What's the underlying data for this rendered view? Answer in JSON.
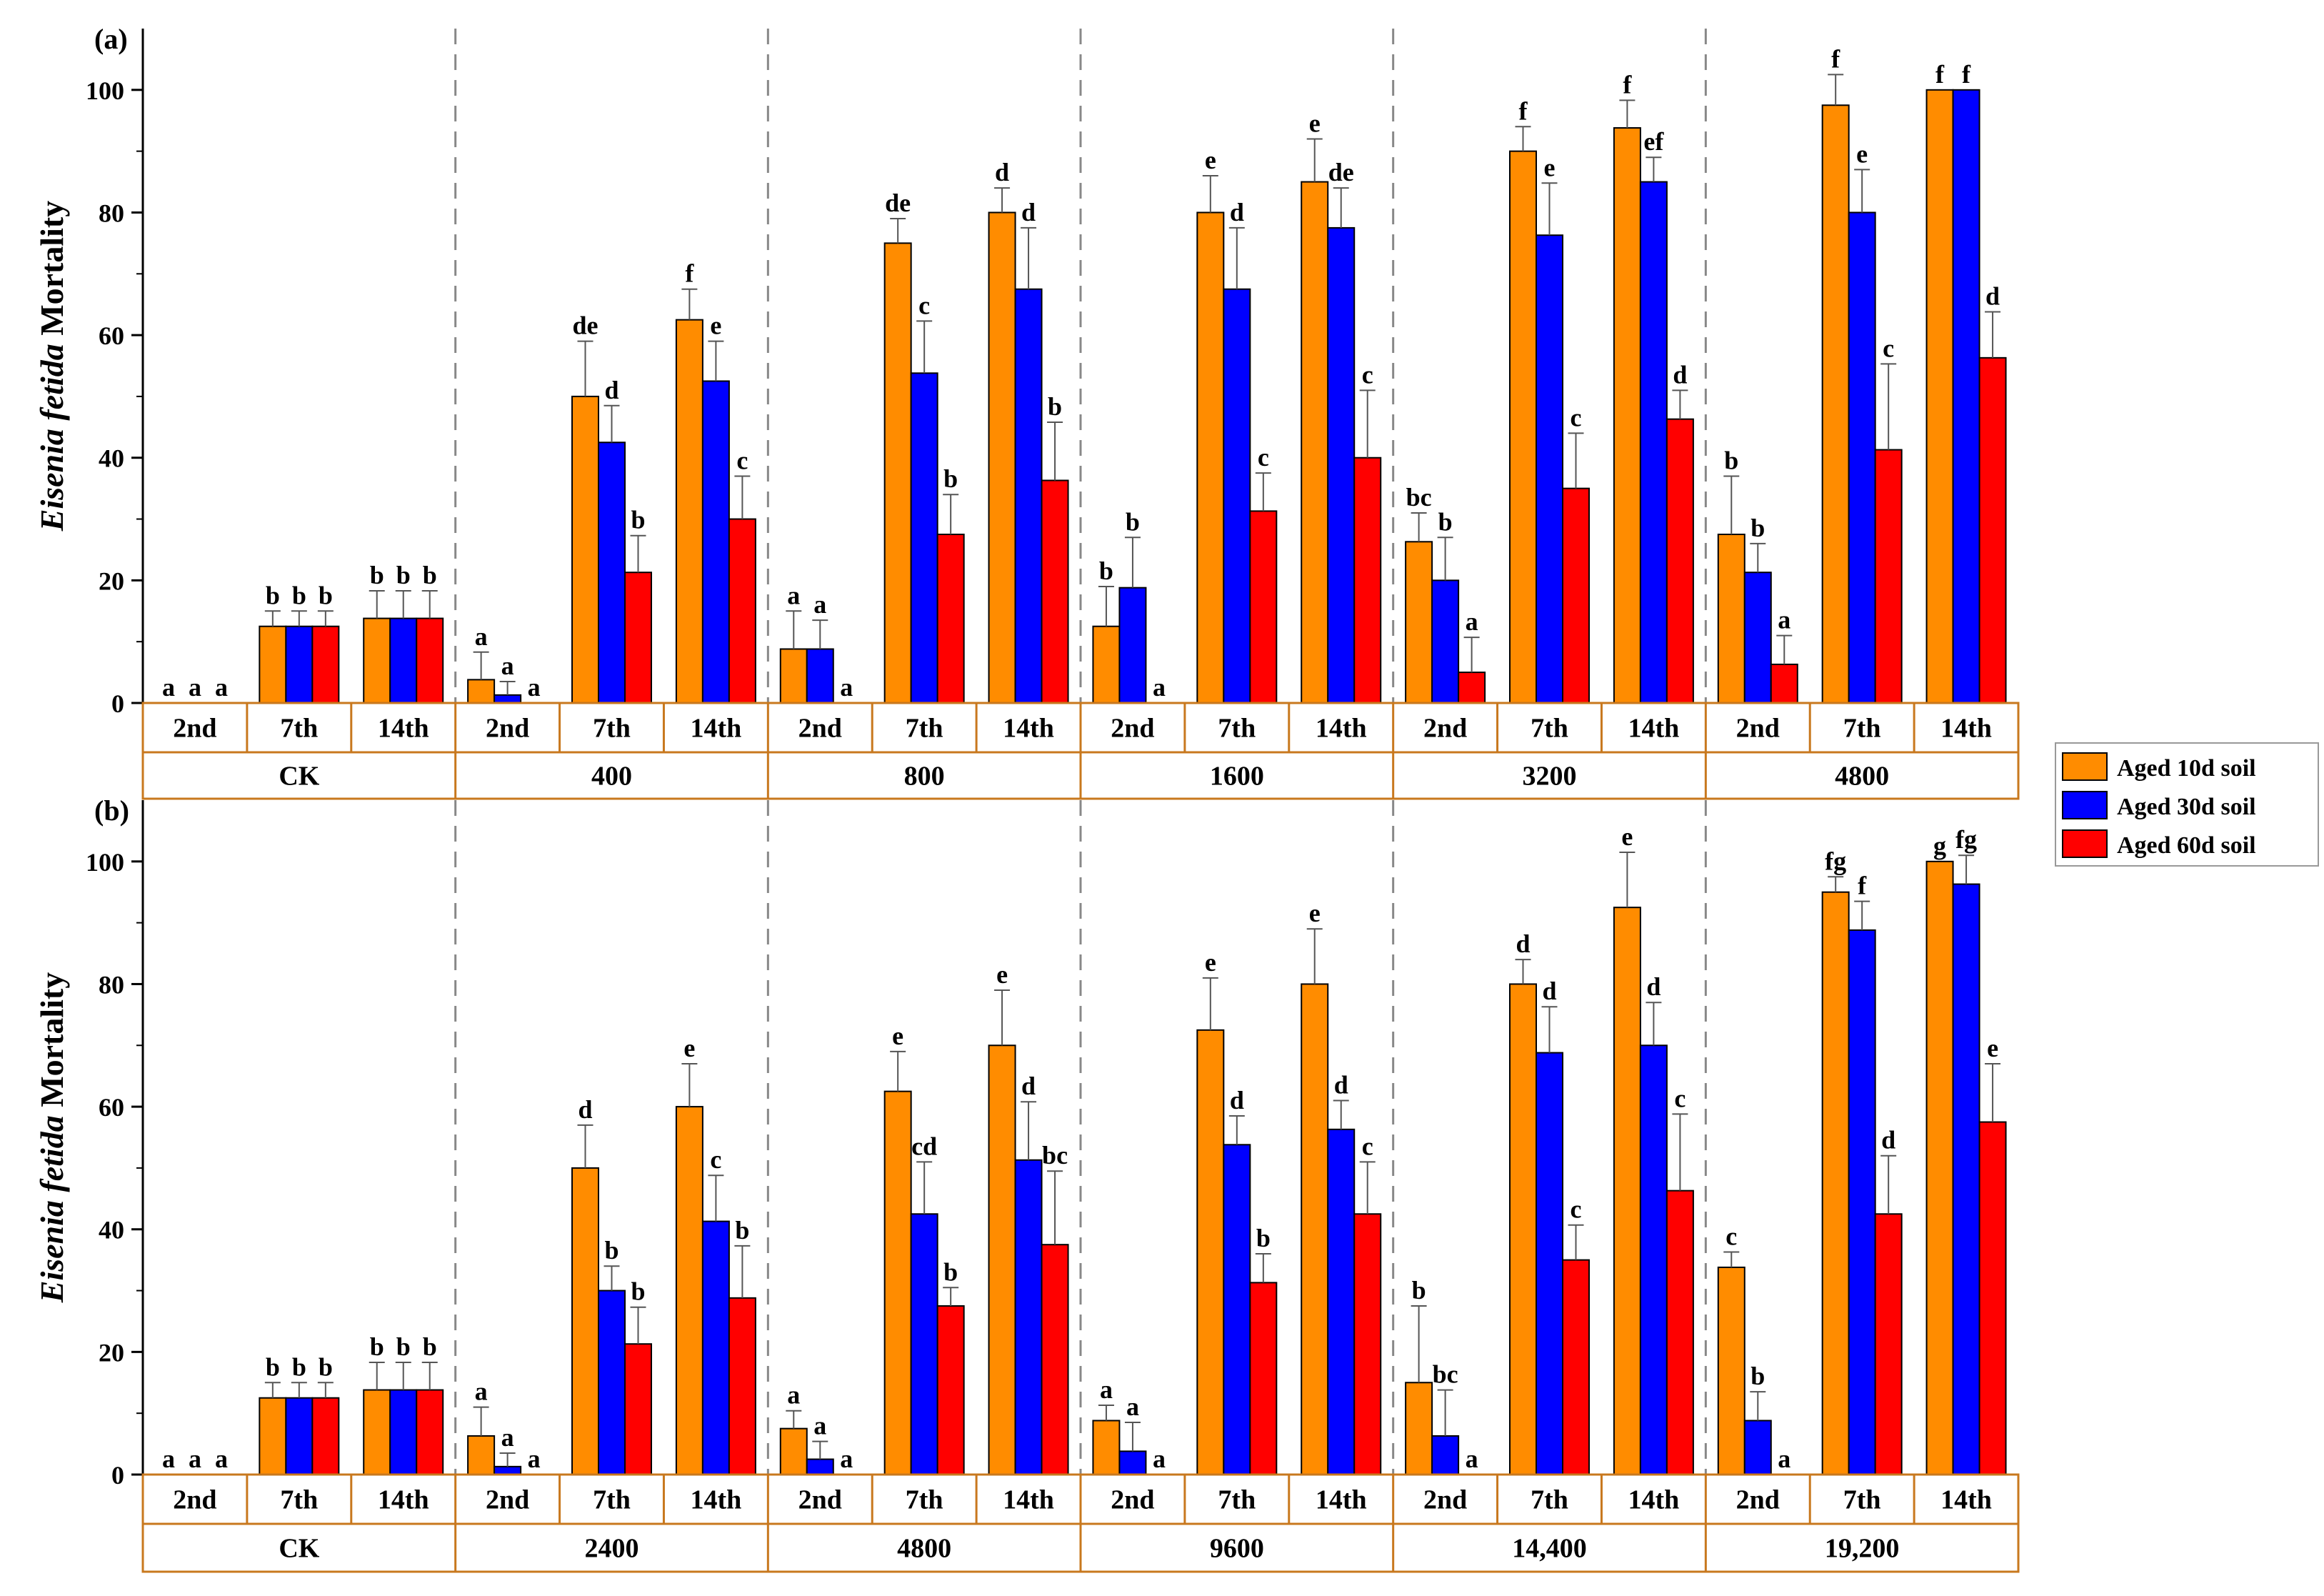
{
  "legend": {
    "position": "right",
    "entries": [
      {
        "name": "Aged 10d soil",
        "color": "#FF8C00"
      },
      {
        "name": "Aged 30d soil",
        "color": "#0000FF"
      },
      {
        "name": "Aged 60d soil",
        "color": "#FF0000"
      }
    ]
  },
  "chart_data": [
    {
      "type": "bar",
      "panel_label": "(a)",
      "ylabel_italic": "Eisenia fetida",
      "ylabel_rest": " Mortality",
      "ylim": [
        0,
        110
      ],
      "yticks": [
        0,
        20,
        40,
        60,
        80,
        100
      ],
      "days": [
        "2nd",
        "7th",
        "14th"
      ],
      "groups": [
        {
          "label": "CK",
          "bars": [
            {
              "day": "2nd",
              "values": [
                0,
                0,
                0
              ],
              "errors": [
                0,
                0,
                0
              ],
              "letters": [
                "a",
                "a",
                "a"
              ]
            },
            {
              "day": "7th",
              "values": [
                12.5,
                12.5,
                12.5
              ],
              "errors": [
                2.5,
                2.5,
                2.5
              ],
              "letters": [
                "b",
                "b",
                "b"
              ]
            },
            {
              "day": "14th",
              "values": [
                13.8,
                13.8,
                13.8
              ],
              "errors": [
                4.5,
                4.5,
                4.5
              ],
              "letters": [
                "b",
                "b",
                "b"
              ]
            }
          ]
        },
        {
          "label": "400",
          "bars": [
            {
              "day": "2nd",
              "values": [
                3.8,
                1.3,
                0
              ],
              "errors": [
                4.5,
                2.2,
                0
              ],
              "letters": [
                "a",
                "a",
                "a"
              ]
            },
            {
              "day": "7th",
              "values": [
                50,
                42.5,
                21.3
              ],
              "errors": [
                9,
                6,
                6
              ],
              "letters": [
                "de",
                "d",
                "b"
              ]
            },
            {
              "day": "14th",
              "values": [
                62.5,
                52.5,
                30
              ],
              "errors": [
                5,
                6.5,
                7
              ],
              "letters": [
                "f",
                "e",
                "c"
              ]
            }
          ]
        },
        {
          "label": "800",
          "bars": [
            {
              "day": "2nd",
              "values": [
                8.8,
                8.8,
                0
              ],
              "errors": [
                6.2,
                4.7,
                0
              ],
              "letters": [
                "a",
                "a",
                "a"
              ]
            },
            {
              "day": "7th",
              "values": [
                75,
                53.8,
                27.5
              ],
              "errors": [
                4,
                8.5,
                6.5
              ],
              "letters": [
                "de",
                "c",
                "b"
              ]
            },
            {
              "day": "14th",
              "values": [
                80,
                67.5,
                36.3
              ],
              "errors": [
                4,
                10,
                9.5
              ],
              "letters": [
                "d",
                "d",
                "b"
              ]
            }
          ]
        },
        {
          "label": "1600",
          "bars": [
            {
              "day": "2nd",
              "values": [
                12.5,
                18.8,
                0
              ],
              "errors": [
                6.5,
                8.2,
                0
              ],
              "letters": [
                "b",
                "b",
                "a"
              ]
            },
            {
              "day": "7th",
              "values": [
                80,
                67.5,
                31.3
              ],
              "errors": [
                6,
                10,
                6.2
              ],
              "letters": [
                "e",
                "d",
                "c"
              ]
            },
            {
              "day": "14th",
              "values": [
                85,
                77.5,
                40
              ],
              "errors": [
                7,
                6.5,
                11
              ],
              "letters": [
                "e",
                "de",
                "c"
              ]
            }
          ]
        },
        {
          "label": "3200",
          "bars": [
            {
              "day": "2nd",
              "values": [
                26.3,
                20,
                5
              ],
              "errors": [
                4.7,
                7,
                5.7
              ],
              "letters": [
                "bc",
                "b",
                "a"
              ]
            },
            {
              "day": "7th",
              "values": [
                90,
                76.3,
                35
              ],
              "errors": [
                4,
                8.5,
                9
              ],
              "letters": [
                "f",
                "e",
                "c"
              ]
            },
            {
              "day": "14th",
              "values": [
                93.8,
                85,
                46.3
              ],
              "errors": [
                4.5,
                4,
                4.7
              ],
              "letters": [
                "f",
                "ef",
                "d"
              ]
            }
          ]
        },
        {
          "label": "4800",
          "bars": [
            {
              "day": "2nd",
              "values": [
                27.5,
                21.3,
                6.3
              ],
              "errors": [
                9.5,
                4.7,
                4.7
              ],
              "letters": [
                "b",
                "b",
                "a"
              ]
            },
            {
              "day": "7th",
              "values": [
                97.5,
                80,
                41.3
              ],
              "errors": [
                5,
                7,
                14
              ],
              "letters": [
                "f",
                "e",
                "c"
              ]
            },
            {
              "day": "14th",
              "values": [
                100,
                100,
                56.3
              ],
              "errors": [
                0,
                0,
                7.5
              ],
              "letters": [
                "f",
                "f",
                "d"
              ]
            }
          ]
        }
      ]
    },
    {
      "type": "bar",
      "panel_label": "(b)",
      "ylabel_italic": "Eisenia fetida",
      "ylabel_rest": " Mortality",
      "ylim": [
        0,
        110
      ],
      "yticks": [
        0,
        20,
        40,
        60,
        80,
        100
      ],
      "days": [
        "2nd",
        "7th",
        "14th"
      ],
      "groups": [
        {
          "label": "CK",
          "bars": [
            {
              "day": "2nd",
              "values": [
                0,
                0,
                0
              ],
              "errors": [
                0,
                0,
                0
              ],
              "letters": [
                "a",
                "a",
                "a"
              ]
            },
            {
              "day": "7th",
              "values": [
                12.5,
                12.5,
                12.5
              ],
              "errors": [
                2.5,
                2.5,
                2.5
              ],
              "letters": [
                "b",
                "b",
                "b"
              ]
            },
            {
              "day": "14th",
              "values": [
                13.8,
                13.8,
                13.8
              ],
              "errors": [
                4.5,
                4.5,
                4.5
              ],
              "letters": [
                "b",
                "b",
                "b"
              ]
            }
          ]
        },
        {
          "label": "2400",
          "bars": [
            {
              "day": "2nd",
              "values": [
                6.3,
                1.3,
                0
              ],
              "errors": [
                4.7,
                2.2,
                0
              ],
              "letters": [
                "a",
                "a",
                "a"
              ]
            },
            {
              "day": "7th",
              "values": [
                50,
                30,
                21.3
              ],
              "errors": [
                7,
                4,
                6
              ],
              "letters": [
                "d",
                "b",
                "b"
              ]
            },
            {
              "day": "14th",
              "values": [
                60,
                41.3,
                28.8
              ],
              "errors": [
                7,
                7.5,
                8.5
              ],
              "letters": [
                "e",
                "c",
                "b"
              ]
            }
          ]
        },
        {
          "label": "4800",
          "bars": [
            {
              "day": "2nd",
              "values": [
                7.5,
                2.5,
                0
              ],
              "errors": [
                2.9,
                2.9,
                0
              ],
              "letters": [
                "a",
                "a",
                "a"
              ]
            },
            {
              "day": "7th",
              "values": [
                62.5,
                42.5,
                27.5
              ],
              "errors": [
                6.5,
                8.5,
                3
              ],
              "letters": [
                "e",
                "cd",
                "b"
              ]
            },
            {
              "day": "14th",
              "values": [
                70,
                51.3,
                37.5
              ],
              "errors": [
                9,
                9.5,
                12
              ],
              "letters": [
                "e",
                "d",
                "bc"
              ]
            }
          ]
        },
        {
          "label": "9600",
          "bars": [
            {
              "day": "2nd",
              "values": [
                8.8,
                3.8,
                0
              ],
              "errors": [
                2.5,
                4.7,
                0
              ],
              "letters": [
                "a",
                "a",
                "a"
              ]
            },
            {
              "day": "7th",
              "values": [
                72.5,
                53.8,
                31.3
              ],
              "errors": [
                8.5,
                4.7,
                4.7
              ],
              "letters": [
                "e",
                "d",
                "b"
              ]
            },
            {
              "day": "14th",
              "values": [
                80,
                56.3,
                42.5
              ],
              "errors": [
                9,
                4.7,
                8.5
              ],
              "letters": [
                "e",
                "d",
                "c"
              ]
            }
          ]
        },
        {
          "label": "14,400",
          "bars": [
            {
              "day": "2nd",
              "values": [
                15,
                6.3,
                0
              ],
              "errors": [
                12.5,
                7.5,
                0
              ],
              "letters": [
                "b",
                "bc",
                "a"
              ]
            },
            {
              "day": "7th",
              "values": [
                80,
                68.8,
                35
              ],
              "errors": [
                4,
                7.5,
                5.7
              ],
              "letters": [
                "d",
                "d",
                "c"
              ]
            },
            {
              "day": "14th",
              "values": [
                92.5,
                70,
                46.3
              ],
              "errors": [
                9,
                7,
                12.5
              ],
              "letters": [
                "e",
                "d",
                "c"
              ]
            }
          ]
        },
        {
          "label": "19,200",
          "bars": [
            {
              "day": "2nd",
              "values": [
                33.8,
                8.8,
                0
              ],
              "errors": [
                2.5,
                4.7,
                0
              ],
              "letters": [
                "c",
                "b",
                "a"
              ]
            },
            {
              "day": "7th",
              "values": [
                95,
                88.8,
                42.5
              ],
              "errors": [
                2.5,
                4.7,
                9.5
              ],
              "letters": [
                "fg",
                "f",
                "d"
              ]
            },
            {
              "day": "14th",
              "values": [
                100,
                96.3,
                57.5
              ],
              "errors": [
                0,
                4.7,
                9.5
              ],
              "letters": [
                "g",
                "fg",
                "e"
              ]
            }
          ]
        }
      ]
    }
  ]
}
